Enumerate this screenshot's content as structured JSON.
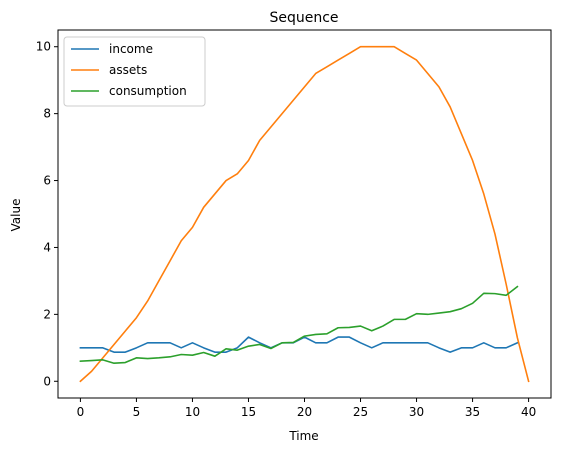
{
  "chart_data": {
    "type": "line",
    "title": "Sequence",
    "xlabel": "Time",
    "ylabel": "Value",
    "xlim": [
      -2.0,
      42.0
    ],
    "ylim": [
      -0.5,
      10.5
    ],
    "xticks": [
      0,
      5,
      10,
      15,
      20,
      25,
      30,
      35,
      40
    ],
    "yticks": [
      0,
      2,
      4,
      6,
      8,
      10
    ],
    "grid": false,
    "legend_position": "upper left",
    "series": [
      {
        "name": "income",
        "color": "#1f77b4",
        "x": [
          0,
          1,
          2,
          3,
          4,
          5,
          6,
          7,
          8,
          9,
          10,
          11,
          12,
          13,
          14,
          15,
          16,
          17,
          18,
          19,
          20,
          21,
          22,
          23,
          24,
          25,
          26,
          27,
          28,
          29,
          30,
          31,
          32,
          33,
          34,
          35,
          36,
          37,
          38,
          39
        ],
        "values": [
          1.0,
          1.0,
          1.0,
          0.87,
          0.87,
          1.0,
          1.15,
          1.15,
          1.15,
          1.0,
          1.15,
          1.0,
          0.87,
          0.87,
          1.0,
          1.32,
          1.15,
          1.0,
          1.15,
          1.15,
          1.32,
          1.15,
          1.15,
          1.32,
          1.32,
          1.15,
          1.0,
          1.15,
          1.15,
          1.15,
          1.15,
          1.15,
          1.0,
          0.87,
          1.0,
          1.0,
          1.15,
          1.0,
          1.0,
          1.15
        ]
      },
      {
        "name": "assets",
        "color": "#ff7f0e",
        "x": [
          0,
          1,
          2,
          3,
          4,
          5,
          6,
          7,
          8,
          9,
          10,
          11,
          12,
          13,
          14,
          15,
          16,
          17,
          18,
          19,
          20,
          21,
          22,
          23,
          24,
          25,
          26,
          27,
          28,
          29,
          30,
          31,
          32,
          33,
          34,
          35,
          36,
          37,
          38,
          39,
          40
        ],
        "values": [
          0.0,
          0.3,
          0.7,
          1.1,
          1.5,
          1.9,
          2.4,
          3.0,
          3.6,
          4.2,
          4.6,
          5.2,
          5.6,
          6.0,
          6.2,
          6.6,
          7.2,
          7.6,
          8.0,
          8.4,
          8.8,
          9.2,
          9.4,
          9.6,
          9.8,
          10.0,
          10.0,
          10.0,
          10.0,
          9.8,
          9.6,
          9.2,
          8.8,
          8.2,
          7.4,
          6.6,
          5.6,
          4.4,
          2.9,
          1.3,
          0.0
        ]
      },
      {
        "name": "consumption",
        "color": "#2ca02c",
        "x": [
          0,
          1,
          2,
          3,
          4,
          5,
          6,
          7,
          8,
          9,
          10,
          11,
          12,
          13,
          14,
          15,
          16,
          17,
          18,
          19,
          20,
          21,
          22,
          23,
          24,
          25,
          26,
          27,
          28,
          29,
          30,
          31,
          32,
          33,
          34,
          35,
          36,
          37,
          38,
          39
        ],
        "values": [
          0.6,
          0.62,
          0.64,
          0.54,
          0.56,
          0.7,
          0.68,
          0.7,
          0.73,
          0.8,
          0.78,
          0.86,
          0.75,
          0.97,
          0.93,
          1.05,
          1.1,
          0.98,
          1.15,
          1.16,
          1.35,
          1.4,
          1.42,
          1.6,
          1.61,
          1.65,
          1.51,
          1.65,
          1.85,
          1.85,
          2.02,
          2.0,
          2.04,
          2.08,
          2.17,
          2.33,
          2.63,
          2.62,
          2.57,
          2.83
        ]
      }
    ]
  }
}
